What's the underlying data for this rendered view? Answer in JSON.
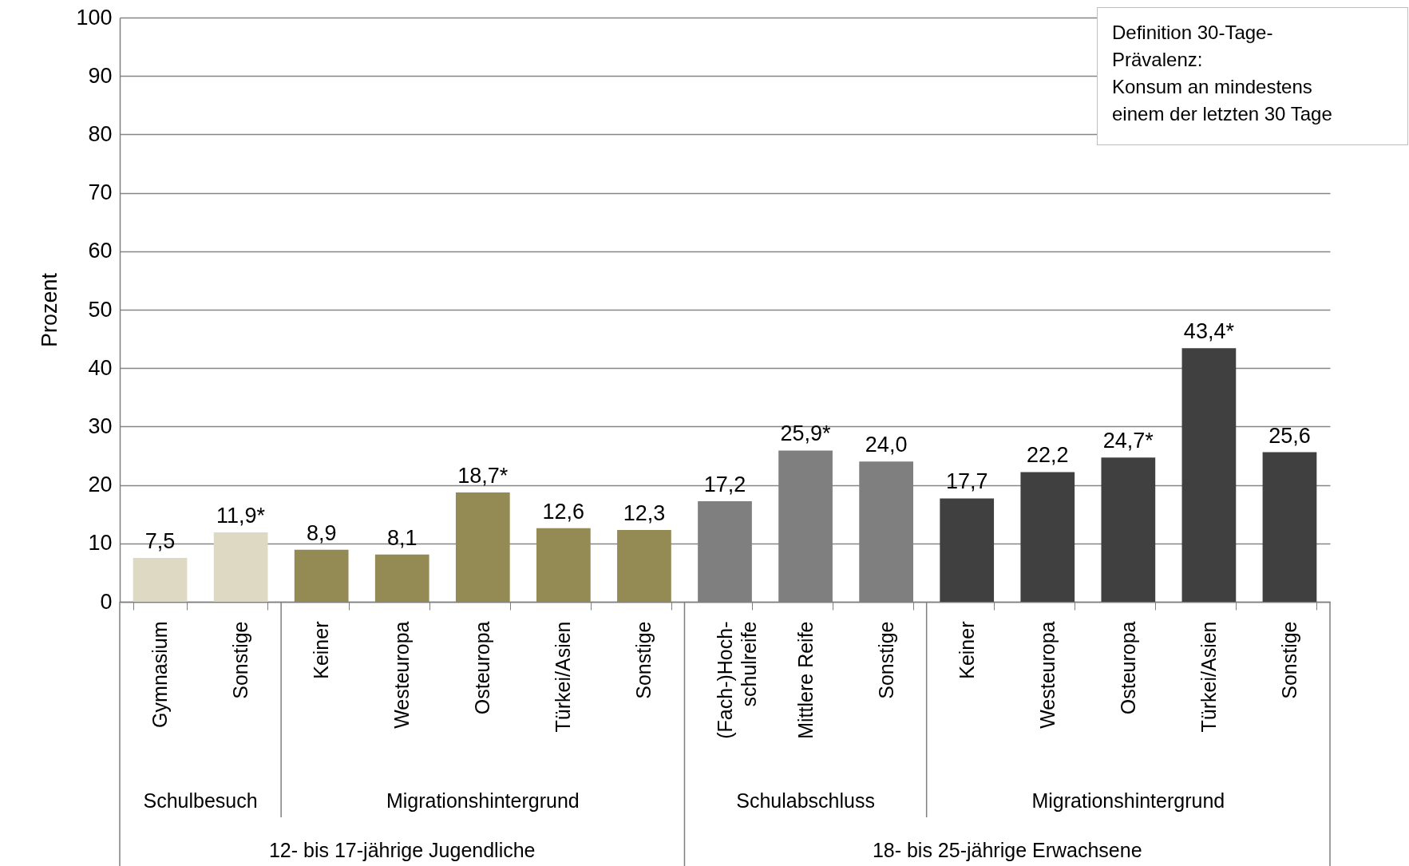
{
  "chart_data": {
    "type": "bar",
    "categories": [
      "Gymnasium",
      "Sonstige",
      "Keiner",
      "Westeuropa",
      "Osteuropa",
      "Türkei/Asien",
      "Sonstige",
      "(Fach-)Hoch-schulreife",
      "Mittlere Reife",
      "Sonstige",
      "Keiner",
      "Westeuropa",
      "Osteuropa",
      "Türkei/Asien",
      "Sonstige"
    ],
    "values": [
      7.5,
      11.9,
      8.9,
      8.1,
      18.7,
      12.6,
      12.3,
      17.2,
      25.9,
      24.0,
      17.7,
      22.2,
      24.7,
      43.4,
      25.6
    ],
    "value_labels": [
      "7,5",
      "11,9*",
      "8,9",
      "8,1",
      "18,7*",
      "12,6",
      "12,3",
      "17,2",
      "25,9*",
      "24,0",
      "17,7",
      "22,2",
      "24,7*",
      "43,4*",
      "25,6"
    ],
    "colors": [
      "#ddd9c3",
      "#ddd9c3",
      "#948a54",
      "#948a54",
      "#948a54",
      "#948a54",
      "#948a54",
      "#7f7f7f",
      "#7f7f7f",
      "#7f7f7f",
      "#404040",
      "#404040",
      "#404040",
      "#404040",
      "#404040"
    ],
    "ylabel": "Prozent",
    "ylim": [
      0,
      100
    ],
    "yticks": [
      0,
      10,
      20,
      30,
      40,
      50,
      60,
      70,
      80,
      90,
      100
    ],
    "grid": "y",
    "annotations": [
      "Definition 30-Tage-\nPrävalenz:\nKonsum an mindestens\neinem der letzten 30 Tage",
      "Schulbesuch",
      "Migrationshintergrund",
      "Schulabschluss",
      "Migrationshintergrund",
      "12- bis 17-jährige Jugendliche",
      "18- bis 25-jährige Erwachsene"
    ]
  }
}
